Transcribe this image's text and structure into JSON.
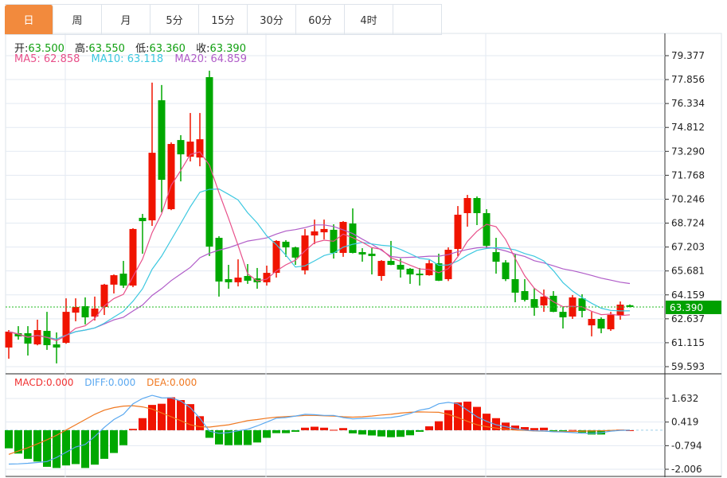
{
  "tabs": [
    {
      "label": "日",
      "active": true
    },
    {
      "label": "周"
    },
    {
      "label": "月"
    },
    {
      "label": "5分"
    },
    {
      "label": "15分"
    },
    {
      "label": "30分"
    },
    {
      "label": "60分"
    },
    {
      "label": "4时"
    }
  ],
  "info": {
    "open_label": "开:",
    "open": "63.500",
    "high_label": "高:",
    "high": "63.550",
    "low_label": "低:",
    "low": "63.360",
    "close_label": "收:",
    "close": "63.390"
  },
  "ma": {
    "ma5": "MA5: 62.858",
    "ma10": "MA10: 63.118",
    "ma20": "MA20: 64.859"
  },
  "macd_legend": {
    "macd": "MACD:0.000",
    "diff": "DIFF:0.000",
    "dea": "DEA:0.000"
  },
  "colors": {
    "up": "#f01400",
    "down": "#00a800",
    "ma5": "#e8508a",
    "ma10": "#3cc8e0",
    "ma20": "#b05cc8",
    "diff": "#5aa8f0",
    "dea": "#f07820",
    "active_tab": "#f28a3d"
  },
  "chart_data": {
    "type": "candlestick",
    "price_axis_ticks": [
      "79.377",
      "77.856",
      "76.334",
      "74.812",
      "73.290",
      "71.768",
      "70.246",
      "68.724",
      "67.203",
      "65.681",
      "64.159",
      "62.637",
      "61.115",
      "59.593"
    ],
    "price_range": [
      59.593,
      79.377
    ],
    "current_price": "63.390",
    "macd_axis_ticks": [
      "1.632",
      "0.419",
      "-0.794",
      "-2.006"
    ],
    "macd_range": [
      -2.006,
      1.632
    ],
    "candles": [
      [
        60.81,
        61.82,
        61.92,
        60.1
      ],
      [
        61.72,
        61.52,
        62.17,
        61.31
      ],
      [
        61.72,
        61.06,
        62.17,
        60.3
      ],
      [
        61.01,
        61.92,
        62.58,
        60.95
      ],
      [
        61.87,
        60.96,
        63.08,
        60.66
      ],
      [
        61.01,
        60.81,
        61.77,
        59.8
      ],
      [
        61.11,
        63.08,
        63.94,
        61.05
      ],
      [
        63.03,
        63.39,
        63.94,
        62.48
      ],
      [
        63.44,
        62.73,
        64.0,
        62.28
      ],
      [
        62.78,
        63.29,
        64.05,
        62.53
      ],
      [
        63.39,
        64.81,
        64.86,
        62.88
      ],
      [
        64.81,
        65.41,
        65.46,
        64.25
      ],
      [
        65.51,
        64.75,
        66.32,
        64.6
      ],
      [
        64.75,
        68.35,
        68.4,
        64.65
      ],
      [
        69.06,
        68.85,
        69.31,
        66.78
      ],
      [
        68.9,
        73.2,
        77.66,
        68.55
      ],
      [
        76.54,
        71.48,
        77.51,
        69.41
      ],
      [
        69.61,
        73.76,
        73.86,
        69.55
      ],
      [
        74.01,
        73.1,
        74.32,
        71.38
      ],
      [
        72.95,
        73.91,
        75.73,
        72.65
      ],
      [
        72.9,
        74.06,
        75.73,
        72.34
      ],
      [
        78.01,
        67.23,
        78.42,
        66.63
      ],
      [
        67.79,
        65.01,
        67.89,
        64.05
      ],
      [
        65.16,
        64.96,
        66.07,
        64.55
      ],
      [
        64.96,
        65.26,
        66.42,
        64.7
      ],
      [
        65.36,
        65.06,
        66.12,
        64.86
      ],
      [
        65.21,
        64.96,
        65.87,
        64.55
      ],
      [
        64.96,
        65.56,
        66.02,
        64.75
      ],
      [
        65.56,
        67.59,
        67.64,
        65.26
      ],
      [
        67.54,
        67.18,
        67.64,
        66.58
      ],
      [
        67.18,
        66.53,
        67.23,
        66.07
      ],
      [
        65.72,
        67.94,
        68.35,
        65.46
      ],
      [
        67.94,
        68.2,
        68.95,
        67.39
      ],
      [
        68.14,
        68.35,
        68.95,
        67.69
      ],
      [
        68.3,
        66.83,
        68.65,
        66.47
      ],
      [
        66.83,
        68.8,
        68.85,
        66.58
      ],
      [
        68.7,
        66.83,
        69.66,
        66.8
      ],
      [
        66.88,
        66.73,
        67.13,
        66.27
      ],
      [
        66.78,
        66.63,
        67.13,
        65.46
      ],
      [
        65.36,
        66.32,
        66.37,
        65.06
      ],
      [
        66.32,
        66.07,
        67.59,
        66.05
      ],
      [
        66.07,
        65.77,
        66.47,
        65.26
      ],
      [
        65.82,
        65.46,
        65.87,
        64.86
      ],
      [
        65.51,
        65.41,
        65.87,
        64.75
      ],
      [
        65.41,
        66.17,
        66.37,
        65.38
      ],
      [
        66.17,
        65.06,
        66.78,
        65.04
      ],
      [
        65.16,
        67.03,
        67.18,
        65.04
      ],
      [
        67.08,
        69.26,
        69.81,
        66.63
      ],
      [
        69.36,
        70.32,
        70.52,
        68.5
      ],
      [
        70.32,
        69.36,
        70.42,
        68.6
      ],
      [
        69.36,
        67.28,
        69.61,
        67.08
      ],
      [
        66.88,
        66.27,
        67.79,
        65.51
      ],
      [
        66.22,
        65.16,
        66.37,
        65.04
      ],
      [
        65.16,
        64.3,
        66.78,
        63.69
      ],
      [
        64.4,
        63.84,
        65.16,
        63.74
      ],
      [
        63.89,
        63.34,
        64.6,
        62.83
      ],
      [
        63.49,
        64.05,
        64.5,
        63.08
      ],
      [
        64.1,
        63.08,
        64.4,
        63.06
      ],
      [
        63.08,
        62.73,
        63.44,
        62.02
      ],
      [
        62.78,
        64.0,
        64.15,
        62.63
      ],
      [
        63.94,
        63.14,
        64.2,
        62.73
      ],
      [
        62.22,
        62.63,
        63.08,
        61.52
      ],
      [
        62.63,
        62.02,
        62.73,
        61.72
      ],
      [
        61.97,
        62.88,
        63.08,
        61.87
      ],
      [
        62.88,
        63.54,
        63.74,
        62.58
      ],
      [
        63.5,
        63.39,
        63.55,
        63.36
      ]
    ],
    "macd_hist": [
      -0.93,
      -1.2,
      -1.47,
      -1.61,
      -1.88,
      -1.94,
      -1.81,
      -1.74,
      -1.94,
      -1.77,
      -1.47,
      -1.17,
      -0.77,
      0.07,
      0.62,
      1.3,
      1.36,
      1.69,
      1.55,
      1.34,
      0.72,
      -0.39,
      -0.73,
      -0.77,
      -0.76,
      -0.76,
      -0.63,
      -0.39,
      -0.15,
      -0.15,
      -0.08,
      0.13,
      0.18,
      0.13,
      0.02,
      0.11,
      -0.16,
      -0.22,
      -0.27,
      -0.32,
      -0.36,
      -0.34,
      -0.26,
      -0.08,
      0.2,
      0.46,
      1.03,
      1.43,
      1.47,
      1.2,
      0.85,
      0.62,
      0.39,
      0.24,
      0.16,
      0.11,
      0.13,
      -0.02,
      -0.04,
      0.01,
      -0.12,
      -0.22,
      -0.22,
      -0.05,
      0.03,
      0.0
    ],
    "diff": [
      -1.74,
      -1.73,
      -1.7,
      -1.66,
      -1.61,
      -1.4,
      -1.13,
      -0.86,
      -0.73,
      -0.32,
      0.15,
      0.55,
      0.82,
      1.36,
      1.63,
      1.79,
      1.67,
      1.66,
      1.5,
      1.16,
      0.62,
      -0.05,
      -0.16,
      -0.12,
      -0.03,
      0.05,
      0.22,
      0.42,
      0.62,
      0.65,
      0.73,
      0.82,
      0.8,
      0.76,
      0.76,
      0.65,
      0.58,
      0.61,
      0.62,
      0.62,
      0.65,
      0.73,
      0.86,
      1.03,
      1.12,
      1.36,
      1.43,
      1.36,
      1.03,
      0.69,
      0.46,
      0.28,
      0.18,
      0.08,
      0.01,
      -0.03,
      -0.04,
      -0.08,
      -0.09,
      -0.12,
      -0.15,
      -0.16,
      -0.13,
      -0.05,
      -0.01,
      0.0
    ],
    "dea": [
      -1.24,
      -1.07,
      -0.9,
      -0.7,
      -0.49,
      -0.26,
      0.01,
      0.28,
      0.55,
      0.82,
      1.03,
      1.16,
      1.24,
      1.26,
      1.2,
      1.09,
      0.89,
      0.69,
      0.49,
      0.28,
      0.18,
      0.16,
      0.22,
      0.28,
      0.38,
      0.49,
      0.55,
      0.62,
      0.67,
      0.7,
      0.73,
      0.76,
      0.76,
      0.74,
      0.73,
      0.69,
      0.67,
      0.69,
      0.73,
      0.78,
      0.82,
      0.88,
      0.92,
      0.94,
      0.93,
      0.92,
      0.82,
      0.65,
      0.46,
      0.28,
      0.18,
      0.11,
      0.05,
      0.01,
      -0.01,
      -0.04,
      -0.05,
      -0.07,
      -0.07,
      -0.07,
      -0.05,
      -0.04,
      -0.03,
      -0.01,
      0.0,
      0.0
    ]
  }
}
